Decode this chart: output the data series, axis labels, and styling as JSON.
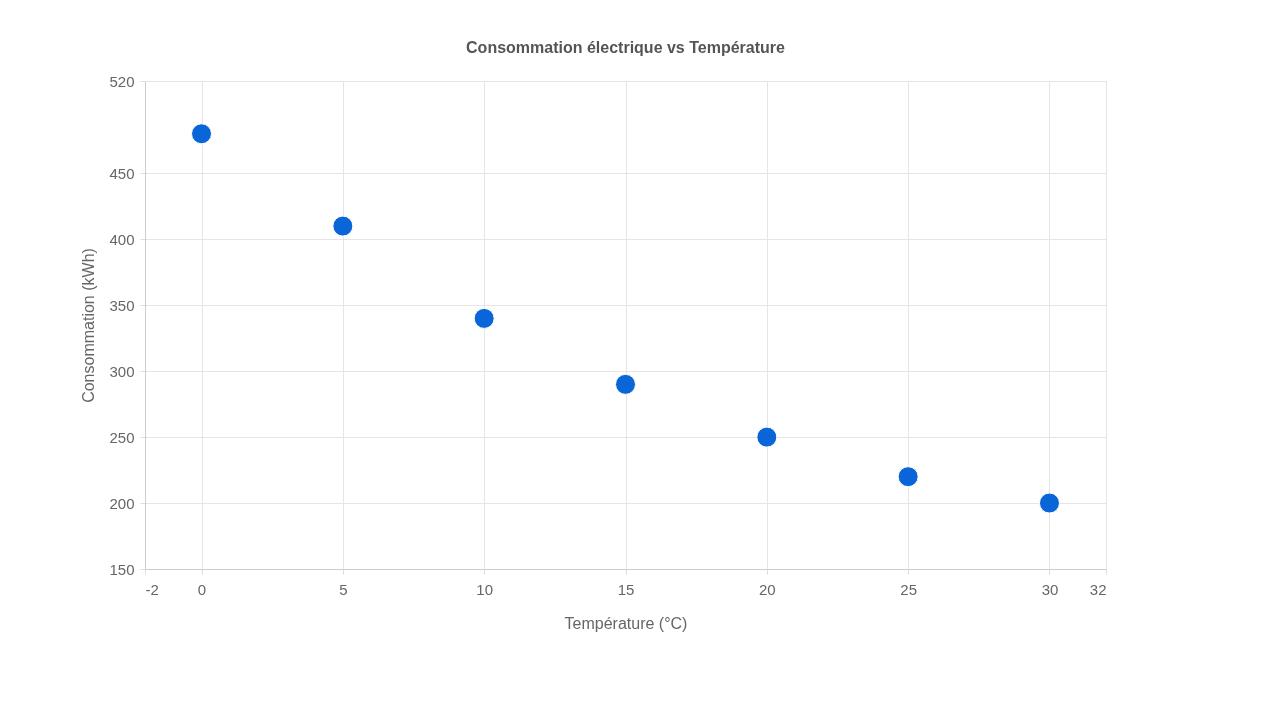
{
  "chart_data": {
    "type": "scatter",
    "title": "Consommation électrique vs Température",
    "xlabel": "Température (°C)",
    "ylabel": "Consommation (kWh)",
    "x": [
      0,
      5,
      10,
      15,
      20,
      25,
      30
    ],
    "series": [
      {
        "color": "#0a66d8",
        "values": [
          480,
          410,
          340,
          290,
          250,
          220,
          200
        ]
      }
    ],
    "xlim": [
      -2,
      32
    ],
    "xticks": [
      -2,
      0,
      5,
      10,
      15,
      20,
      25,
      30,
      32
    ],
    "ylim": [
      150,
      520
    ],
    "yticks": [
      150,
      200,
      250,
      300,
      350,
      400,
      450,
      520
    ],
    "grid": true,
    "marker": "circle",
    "legend": false
  }
}
